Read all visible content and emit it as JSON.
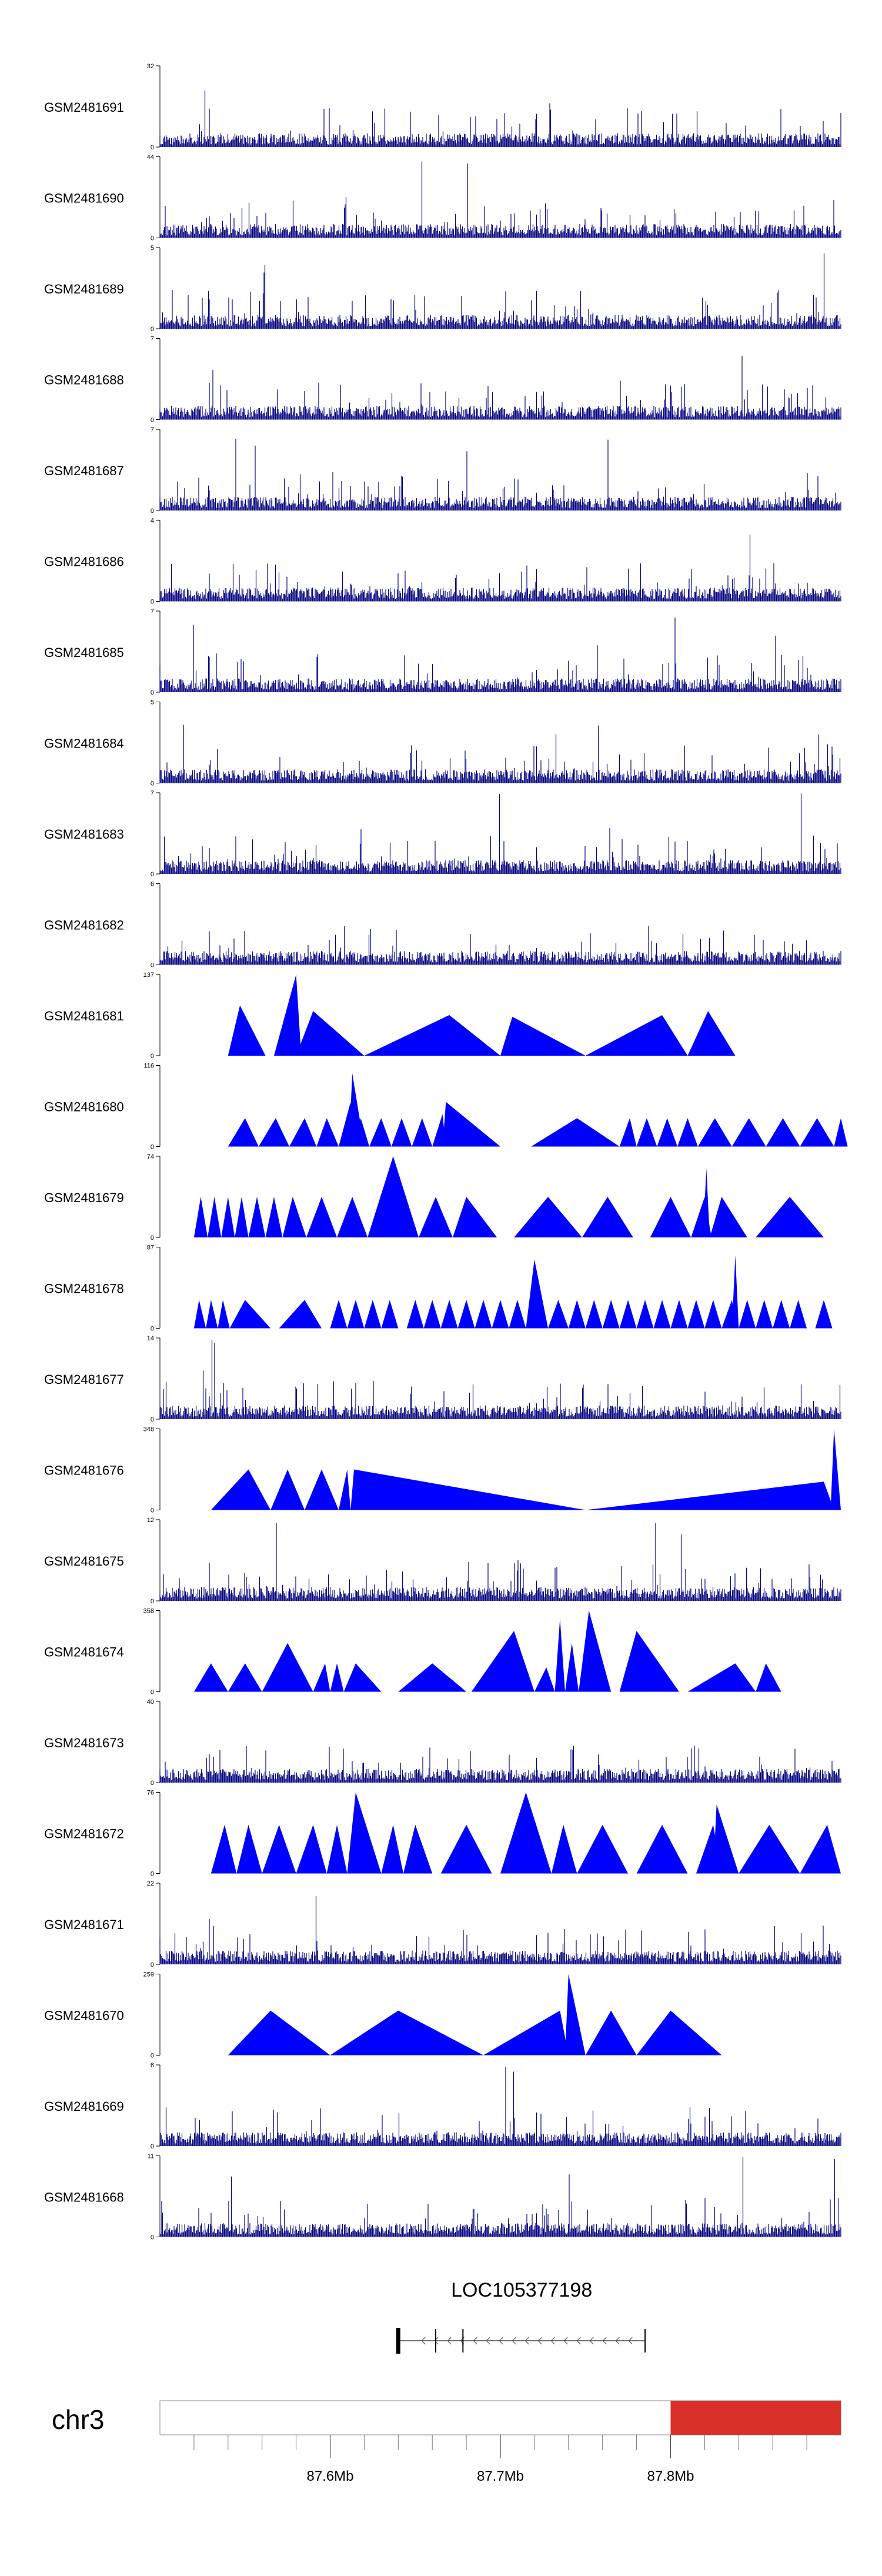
{
  "chart_data": {
    "type": "area",
    "colors": {
      "signal": "#0000ff",
      "signal_dense": "#000080",
      "highlight": "#d9302a",
      "axis": "#000000"
    },
    "tracks": [
      {
        "name": "GSM2481691",
        "ymax": 32,
        "style": "dense"
      },
      {
        "name": "GSM2481690",
        "ymax": 44,
        "style": "dense"
      },
      {
        "name": "GSM2481689",
        "ymax": 5,
        "style": "dense"
      },
      {
        "name": "GSM2481688",
        "ymax": 7,
        "style": "dense"
      },
      {
        "name": "GSM2481687",
        "ymax": 7,
        "style": "dense"
      },
      {
        "name": "GSM2481686",
        "ymax": 4,
        "style": "dense"
      },
      {
        "name": "GSM2481685",
        "ymax": 7,
        "style": "dense"
      },
      {
        "name": "GSM2481684",
        "ymax": 5,
        "style": "dense"
      },
      {
        "name": "GSM2481683",
        "ymax": 7,
        "style": "dense"
      },
      {
        "name": "GSM2481682",
        "ymax": 6,
        "style": "dense"
      },
      {
        "name": "GSM2481681",
        "ymax": 137,
        "style": "peaks",
        "peaks": [
          [
            87.54,
            87.547,
            87.562,
            0.62
          ],
          [
            87.567,
            87.58,
            87.583,
            1.0
          ],
          [
            87.58,
            87.59,
            87.62,
            0.55
          ],
          [
            87.62,
            87.67,
            87.7,
            0.5
          ],
          [
            87.7,
            87.707,
            87.75,
            0.48
          ],
          [
            87.75,
            87.795,
            87.81,
            0.5
          ],
          [
            87.81,
            87.822,
            87.838,
            0.55
          ]
        ]
      },
      {
        "name": "GSM2481680",
        "ymax": 116,
        "style": "peaks",
        "peaks": [
          [
            87.54,
            87.55,
            87.558,
            0.35
          ],
          [
            87.558,
            87.568,
            87.576,
            0.35
          ],
          [
            87.576,
            87.585,
            87.592,
            0.35
          ],
          [
            87.592,
            87.598,
            87.605,
            0.35
          ],
          [
            87.605,
            87.612,
            87.614,
            0.55
          ],
          [
            87.611,
            87.613,
            87.62,
            0.9
          ],
          [
            87.613,
            87.618,
            87.623,
            0.35
          ],
          [
            87.623,
            87.63,
            87.636,
            0.35
          ],
          [
            87.636,
            87.642,
            87.648,
            0.35
          ],
          [
            87.648,
            87.654,
            87.66,
            0.35
          ],
          [
            87.66,
            87.666,
            87.668,
            0.4
          ],
          [
            87.666,
            87.668,
            87.7,
            0.55
          ],
          [
            87.718,
            87.745,
            87.77,
            0.35
          ],
          [
            87.77,
            87.776,
            87.78,
            0.35
          ],
          [
            87.78,
            87.786,
            87.792,
            0.35
          ],
          [
            87.792,
            87.798,
            87.804,
            0.35
          ],
          [
            87.804,
            87.81,
            87.816,
            0.35
          ],
          [
            87.816,
            87.826,
            87.836,
            0.35
          ],
          [
            87.836,
            87.846,
            87.856,
            0.35
          ],
          [
            87.856,
            87.866,
            87.876,
            0.35
          ],
          [
            87.876,
            87.886,
            87.896,
            0.35
          ],
          [
            87.896,
            87.9,
            87.904,
            0.35
          ]
        ]
      },
      {
        "name": "GSM2481679",
        "ymax": 74,
        "style": "peaks",
        "peaks": [
          [
            87.52,
            87.524,
            87.528,
            0.5
          ],
          [
            87.528,
            87.532,
            87.536,
            0.5
          ],
          [
            87.536,
            87.54,
            87.544,
            0.5
          ],
          [
            87.544,
            87.548,
            87.552,
            0.5
          ],
          [
            87.552,
            87.557,
            87.562,
            0.5
          ],
          [
            87.562,
            87.567,
            87.572,
            0.5
          ],
          [
            87.572,
            87.578,
            87.586,
            0.5
          ],
          [
            87.586,
            87.595,
            87.604,
            0.5
          ],
          [
            87.604,
            87.613,
            87.622,
            0.5
          ],
          [
            87.622,
            87.637,
            87.652,
            1.0
          ],
          [
            87.652,
            87.662,
            87.672,
            0.5
          ],
          [
            87.672,
            87.68,
            87.698,
            0.5
          ],
          [
            87.708,
            87.728,
            87.748,
            0.5
          ],
          [
            87.748,
            87.763,
            87.778,
            0.5
          ],
          [
            87.788,
            87.8,
            87.812,
            0.5
          ],
          [
            87.812,
            87.82,
            87.824,
            0.5
          ],
          [
            87.819,
            87.821,
            87.823,
            0.85
          ],
          [
            87.823,
            87.83,
            87.845,
            0.5
          ],
          [
            87.85,
            87.87,
            87.89,
            0.5
          ]
        ]
      },
      {
        "name": "GSM2481678",
        "ymax": 87,
        "style": "peaks",
        "peaks": [
          [
            87.52,
            87.523,
            87.527,
            0.35
          ],
          [
            87.527,
            87.53,
            87.534,
            0.35
          ],
          [
            87.534,
            87.537,
            87.541,
            0.35
          ],
          [
            87.541,
            87.55,
            87.565,
            0.35
          ],
          [
            87.57,
            87.585,
            87.595,
            0.35
          ],
          [
            87.6,
            87.605,
            87.61,
            0.35
          ],
          [
            87.61,
            87.615,
            87.62,
            0.35
          ],
          [
            87.62,
            87.625,
            87.63,
            0.35
          ],
          [
            87.63,
            87.635,
            87.64,
            0.35
          ],
          [
            87.645,
            87.65,
            87.655,
            0.35
          ],
          [
            87.655,
            87.66,
            87.665,
            0.35
          ],
          [
            87.665,
            87.67,
            87.675,
            0.35
          ],
          [
            87.675,
            87.68,
            87.685,
            0.35
          ],
          [
            87.685,
            87.69,
            87.695,
            0.35
          ],
          [
            87.695,
            87.7,
            87.705,
            0.35
          ],
          [
            87.705,
            87.71,
            87.715,
            0.35
          ],
          [
            87.715,
            87.72,
            87.728,
            0.85
          ],
          [
            87.728,
            87.734,
            87.74,
            0.35
          ],
          [
            87.74,
            87.745,
            87.75,
            0.35
          ],
          [
            87.75,
            87.755,
            87.76,
            0.35
          ],
          [
            87.76,
            87.765,
            87.77,
            0.35
          ],
          [
            87.77,
            87.775,
            87.78,
            0.35
          ],
          [
            87.78,
            87.785,
            87.79,
            0.35
          ],
          [
            87.79,
            87.795,
            87.8,
            0.35
          ],
          [
            87.8,
            87.805,
            87.81,
            0.35
          ],
          [
            87.81,
            87.815,
            87.82,
            0.35
          ],
          [
            87.82,
            87.825,
            87.83,
            0.35
          ],
          [
            87.83,
            87.836,
            87.839,
            0.35
          ],
          [
            87.836,
            87.838,
            87.84,
            0.9
          ],
          [
            87.84,
            87.845,
            87.85,
            0.35
          ],
          [
            87.85,
            87.855,
            87.86,
            0.35
          ],
          [
            87.86,
            87.865,
            87.87,
            0.35
          ],
          [
            87.87,
            87.875,
            87.88,
            0.35
          ],
          [
            87.885,
            87.89,
            87.895,
            0.35
          ]
        ]
      },
      {
        "name": "GSM2481677",
        "ymax": 14,
        "style": "dense"
      },
      {
        "name": "GSM2481676",
        "ymax": 348,
        "style": "peaks",
        "peaks": [
          [
            87.53,
            87.552,
            87.565,
            0.5
          ],
          [
            87.565,
            87.575,
            87.585,
            0.5
          ],
          [
            87.585,
            87.595,
            87.605,
            0.5
          ],
          [
            87.605,
            87.61,
            87.612,
            0.5
          ],
          [
            87.612,
            87.614,
            87.75,
            0.5
          ],
          [
            87.75,
            87.89,
            87.896,
            0.35
          ],
          [
            87.894,
            87.896,
            87.9,
            1.0
          ]
        ]
      },
      {
        "name": "GSM2481675",
        "ymax": 12,
        "style": "dense"
      },
      {
        "name": "GSM2481674",
        "ymax": 358,
        "style": "peaks",
        "peaks": [
          [
            87.52,
            87.53,
            87.54,
            0.35
          ],
          [
            87.54,
            87.55,
            87.56,
            0.35
          ],
          [
            87.56,
            87.575,
            87.59,
            0.6
          ],
          [
            87.59,
            87.597,
            87.6,
            0.35
          ],
          [
            87.6,
            87.604,
            87.608,
            0.35
          ],
          [
            87.608,
            87.615,
            87.63,
            0.35
          ],
          [
            87.64,
            87.66,
            87.68,
            0.35
          ],
          [
            87.683,
            87.708,
            87.72,
            0.75
          ],
          [
            87.72,
            87.727,
            87.732,
            0.3
          ],
          [
            87.732,
            87.735,
            87.738,
            0.9
          ],
          [
            87.738,
            87.742,
            87.746,
            0.6
          ],
          [
            87.746,
            87.752,
            87.765,
            1.0
          ],
          [
            87.77,
            87.78,
            87.805,
            0.75
          ],
          [
            87.81,
            87.838,
            87.85,
            0.35
          ],
          [
            87.85,
            87.856,
            87.865,
            0.35
          ]
        ]
      },
      {
        "name": "GSM2481673",
        "ymax": 40,
        "style": "dense"
      },
      {
        "name": "GSM2481672",
        "ymax": 76,
        "style": "peaks",
        "peaks": [
          [
            87.53,
            87.538,
            87.545,
            0.6
          ],
          [
            87.545,
            87.552,
            87.56,
            0.6
          ],
          [
            87.56,
            87.57,
            87.58,
            0.6
          ],
          [
            87.58,
            87.59,
            87.598,
            0.6
          ],
          [
            87.598,
            87.604,
            87.61,
            0.6
          ],
          [
            87.61,
            87.615,
            87.63,
            1.0
          ],
          [
            87.63,
            87.637,
            87.643,
            0.6
          ],
          [
            87.643,
            87.65,
            87.66,
            0.6
          ],
          [
            87.665,
            87.68,
            87.695,
            0.6
          ],
          [
            87.7,
            87.715,
            87.73,
            1.0
          ],
          [
            87.73,
            87.737,
            87.745,
            0.6
          ],
          [
            87.745,
            87.76,
            87.775,
            0.6
          ],
          [
            87.78,
            87.795,
            87.81,
            0.6
          ],
          [
            87.815,
            87.825,
            87.83,
            0.6
          ],
          [
            87.825,
            87.827,
            87.84,
            0.85
          ],
          [
            87.84,
            87.858,
            87.876,
            0.6
          ],
          [
            87.876,
            87.892,
            87.9,
            0.6
          ]
        ]
      },
      {
        "name": "GSM2481671",
        "ymax": 22,
        "style": "dense"
      },
      {
        "name": "GSM2481670",
        "ymax": 259,
        "style": "peaks",
        "peaks": [
          [
            87.54,
            87.565,
            87.6,
            0.55
          ],
          [
            87.6,
            87.64,
            87.69,
            0.55
          ],
          [
            87.69,
            87.735,
            87.74,
            0.55
          ],
          [
            87.738,
            87.74,
            87.75,
            1.0
          ],
          [
            87.75,
            87.765,
            87.78,
            0.55
          ],
          [
            87.78,
            87.8,
            87.83,
            0.55
          ]
        ]
      },
      {
        "name": "GSM2481669",
        "ymax": 6,
        "style": "dense"
      },
      {
        "name": "GSM2481668",
        "ymax": 11,
        "style": "dense"
      }
    ],
    "gene": {
      "name": "LOC105377198",
      "start": 87.64,
      "end": 87.785,
      "strand": "-",
      "exons": [
        87.64,
        87.662,
        87.678,
        87.785
      ]
    },
    "chromosome": {
      "name": "chr3",
      "highlight": [
        87.8,
        87.9
      ]
    },
    "xaxis": {
      "range": [
        87.5,
        87.9
      ],
      "tick_labels": [
        "87.6Mb",
        "87.7Mb",
        "87.8Mb"
      ],
      "tick_values": [
        87.6,
        87.7,
        87.8
      ],
      "minor_step": 0.02
    }
  }
}
